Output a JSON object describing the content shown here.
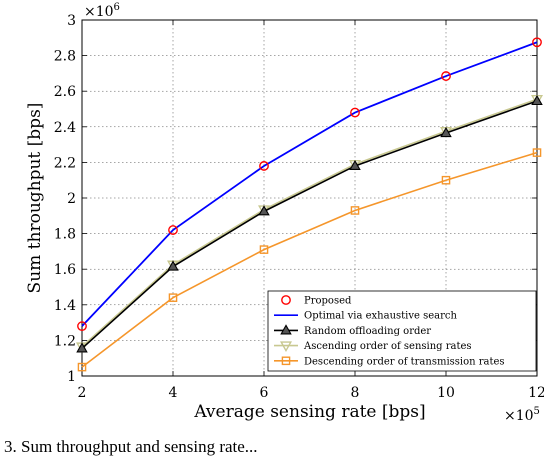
{
  "chart_data": {
    "type": "line",
    "xlabel": "Average sensing rate [bps]",
    "ylabel": "Sum throughput [bps]",
    "x_multiplier": "×10",
    "x_exponent": "5",
    "y_multiplier": "×10",
    "y_exponent": "6",
    "x": [
      2,
      4,
      6,
      8,
      10,
      12
    ],
    "xticks": [
      "2",
      "4",
      "6",
      "8",
      "10",
      "12"
    ],
    "yticks": [
      "1",
      "1.2",
      "1.4",
      "1.6",
      "1.8",
      "2",
      "2.2",
      "2.4",
      "2.6",
      "2.8",
      "3"
    ],
    "xlim": [
      2,
      12
    ],
    "ylim": [
      1,
      3
    ],
    "grid": true,
    "legend_position": "bottom-right",
    "series": [
      {
        "name": "Proposed",
        "values": [
          1.28,
          1.82,
          2.18,
          2.48,
          2.685,
          2.875
        ],
        "color": "#ff0000",
        "marker": "circle",
        "line": false
      },
      {
        "name": "Optimal via exhaustive search",
        "values": [
          1.28,
          1.82,
          2.18,
          2.48,
          2.685,
          2.875
        ],
        "color": "#0000ff",
        "marker": "none",
        "line": true
      },
      {
        "name": "Random offloading order",
        "values": [
          1.155,
          1.615,
          1.925,
          2.18,
          2.365,
          2.545
        ],
        "color": "#000000",
        "marker": "triangle-up",
        "line": true
      },
      {
        "name": "Ascending order of sensing rates",
        "values": [
          1.165,
          1.625,
          1.935,
          2.19,
          2.375,
          2.555
        ],
        "color": "#c8c890",
        "marker": "triangle-down",
        "line": true
      },
      {
        "name": "Descending order of transmission rates",
        "values": [
          1.05,
          1.44,
          1.71,
          1.93,
          2.1,
          2.255
        ],
        "color": "#f5962b",
        "marker": "square",
        "line": true
      }
    ]
  },
  "caption": "3.   Sum throughput and sensing rate..."
}
